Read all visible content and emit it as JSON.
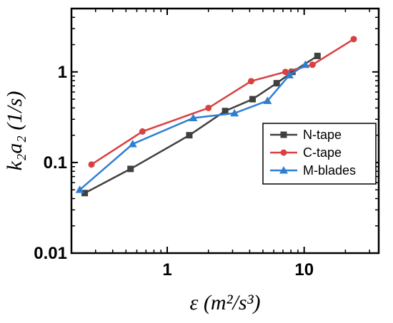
{
  "chart_data": {
    "type": "line",
    "title": "",
    "xlabel": "ε (m²/s³)",
    "ylabel": "k₂a₂ (1/s)",
    "xscale": "log",
    "yscale": "log",
    "xlim": [
      0.2,
      35
    ],
    "ylim": [
      0.01,
      5
    ],
    "grid": false,
    "legend_position": "center-right",
    "x_ticks": [
      {
        "value": 1,
        "label": "1"
      },
      {
        "value": 10,
        "label": "10"
      }
    ],
    "y_ticks": [
      {
        "value": 0.01,
        "label": "0.01"
      },
      {
        "value": 0.1,
        "label": "0.1"
      },
      {
        "value": 1,
        "label": "1"
      }
    ],
    "series": [
      {
        "name": "N-tape",
        "color": "#404040",
        "marker": "square",
        "x": [
          0.25,
          0.54,
          1.45,
          2.65,
          4.2,
          6.3,
          8.2,
          12.5
        ],
        "y": [
          0.046,
          0.085,
          0.2,
          0.37,
          0.5,
          0.75,
          1.0,
          1.5
        ]
      },
      {
        "name": "C-tape",
        "color": "#d94040",
        "marker": "circle",
        "x": [
          0.28,
          0.66,
          2.0,
          4.1,
          7.3,
          11.5,
          23.0
        ],
        "y": [
          0.095,
          0.22,
          0.4,
          0.79,
          1.0,
          1.2,
          2.3
        ]
      },
      {
        "name": "M-blades",
        "color": "#2f7fd1",
        "marker": "triangle",
        "x": [
          0.23,
          0.56,
          1.55,
          3.1,
          5.4,
          7.8,
          10.2
        ],
        "y": [
          0.05,
          0.16,
          0.31,
          0.35,
          0.48,
          0.92,
          1.2
        ]
      }
    ]
  }
}
